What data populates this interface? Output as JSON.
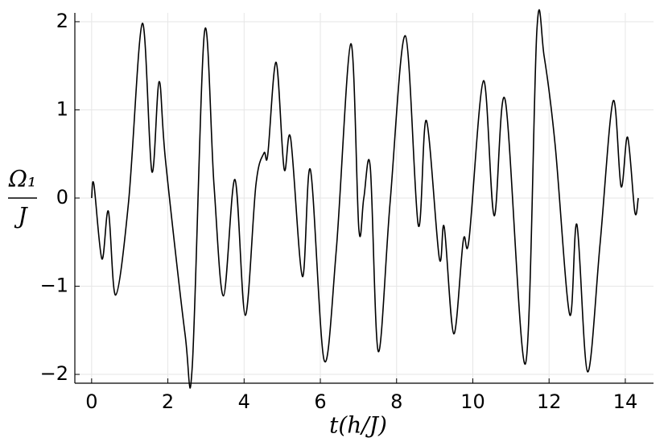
{
  "chart_data": {
    "type": "line",
    "x_label": "t(h/J)",
    "y_label_numerator": "Ω₁",
    "y_label_denominator": "J",
    "xlim": [
      -0.44,
      14.74
    ],
    "ylim": [
      -2.1,
      2.1
    ],
    "xticks": [
      0,
      2,
      4,
      6,
      8,
      10,
      12,
      14
    ],
    "yticks": [
      {
        "value": -2,
        "label": "−2"
      },
      {
        "value": -1,
        "label": "−1"
      },
      0,
      1,
      2
    ],
    "grid": true,
    "series": [
      {
        "color": "#000000",
        "x": [
          0,
          0.06,
          0.27,
          0.44,
          0.63,
          0.97,
          1.33,
          1.58,
          1.77,
          1.94,
          2.45,
          2.64,
          2.96,
          3.21,
          3.46,
          3.76,
          4.03,
          4.31,
          4.52,
          4.62,
          4.84,
          5.05,
          5.22,
          5.53,
          5.74,
          6.1,
          6.42,
          6.8,
          7.01,
          7.14,
          7.31,
          7.52,
          7.83,
          8.23,
          8.57,
          8.78,
          9.12,
          9.25,
          9.5,
          9.75,
          9.9,
          10.28,
          10.56,
          10.85,
          11.38,
          11.68,
          11.87,
          12.16,
          12.54,
          12.73,
          13.01,
          13.34,
          13.68,
          13.89,
          14.06,
          14.25,
          14.34
        ],
        "values": [
          0,
          0.155,
          -0.69,
          -0.15,
          -1.1,
          -0.04,
          1.98,
          0.3,
          1.32,
          0.42,
          -1.54,
          -1.91,
          1.88,
          0.15,
          -1.11,
          0.21,
          -1.33,
          0.15,
          0.51,
          0.49,
          1.54,
          0.33,
          0.68,
          -0.89,
          0.32,
          -1.84,
          -0.58,
          1.75,
          -0.35,
          0.0,
          0.35,
          -1.74,
          -0.05,
          1.84,
          -0.31,
          0.88,
          -0.68,
          -0.33,
          -1.54,
          -0.48,
          -0.47,
          1.33,
          -0.2,
          1.11,
          -1.88,
          1.9,
          1.61,
          0.6,
          -1.32,
          -0.3,
          -1.97,
          -0.51,
          1.1,
          0.13,
          0.69,
          -0.16,
          0
        ]
      }
    ]
  }
}
